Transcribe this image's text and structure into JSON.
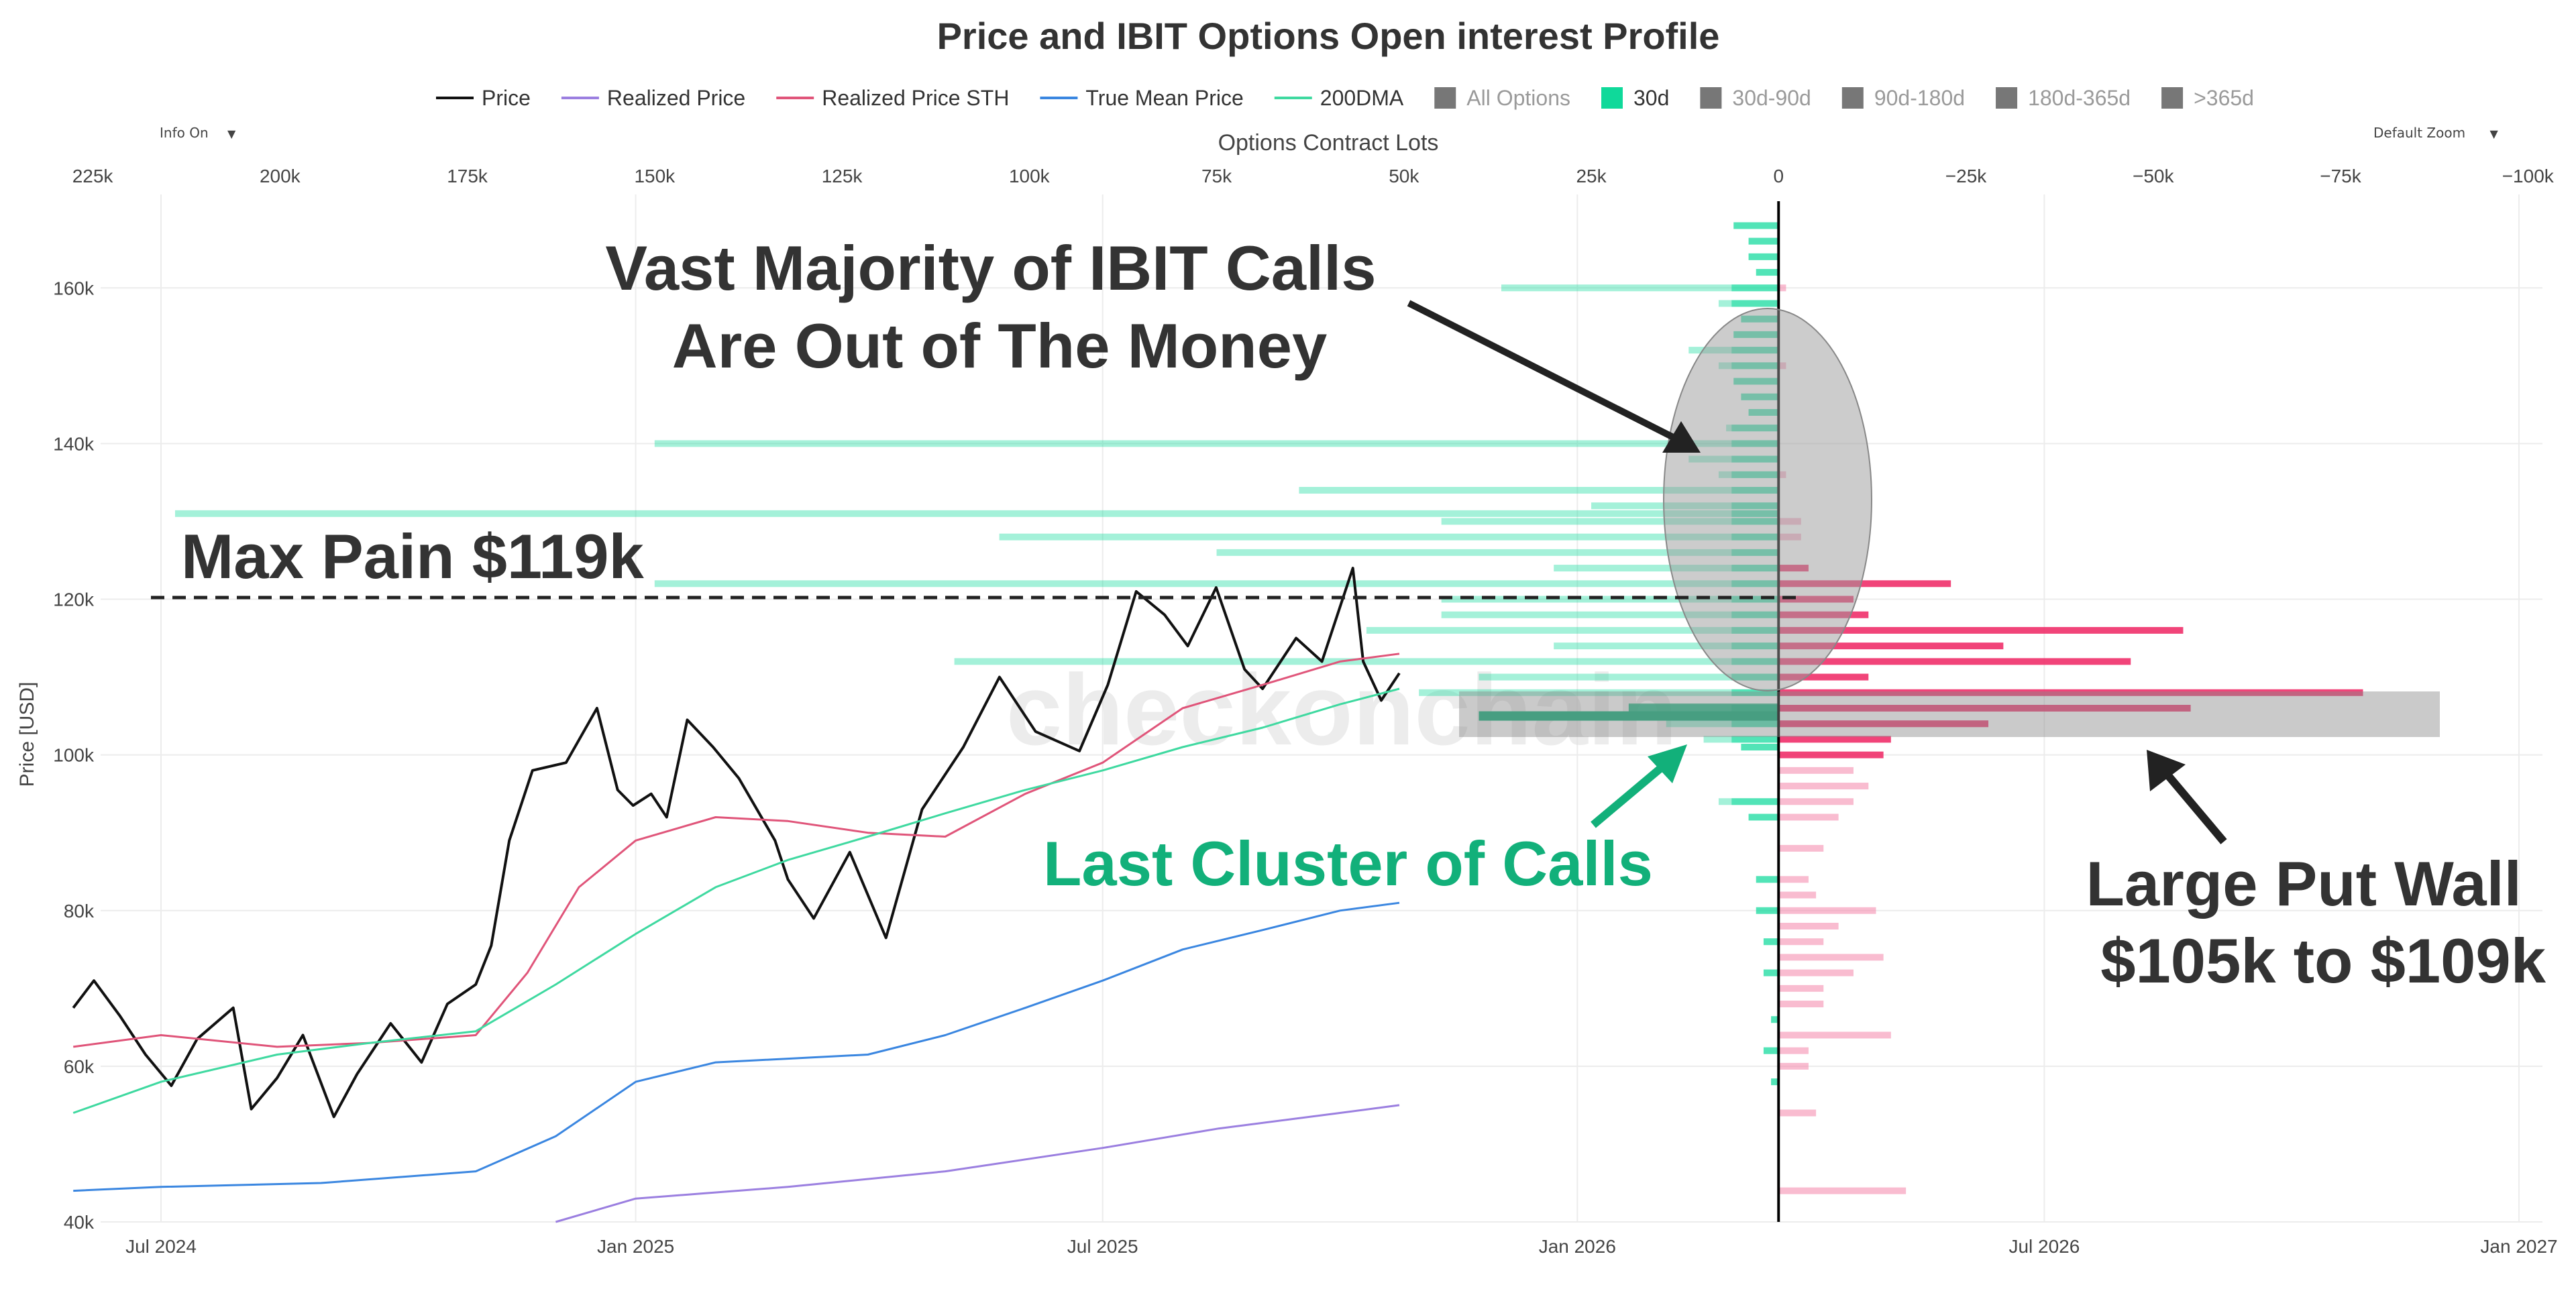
{
  "chart_data": {
    "type": "line",
    "title": "Price and IBIT Options Open interest Profile",
    "watermark": "checkonchain",
    "ylabel": "Price [USD]",
    "top_axis_label": "Options Contract Lots",
    "ylim": [
      40000,
      172000
    ],
    "y_ticks": [
      40000,
      60000,
      80000,
      100000,
      120000,
      140000,
      160000
    ],
    "y_tick_labels": [
      "40k",
      "60k",
      "80k",
      "100k",
      "120k",
      "140k",
      "160k"
    ],
    "x_ticks": [
      "2024-07-01",
      "2025-01-01",
      "2025-07-01",
      "2026-01-01",
      "2026-07-01",
      "2027-01-01"
    ],
    "x_tick_labels": [
      "Jul 2024",
      "Jan 2025",
      "Jul 2025",
      "Jan 2026",
      "Jul 2026",
      "Jan 2027"
    ],
    "top_ticks": [
      225000,
      200000,
      175000,
      150000,
      125000,
      100000,
      75000,
      50000,
      25000,
      0,
      -25000,
      -50000,
      -75000,
      -100000
    ],
    "top_tick_labels": [
      "225k",
      "200k",
      "175k",
      "150k",
      "125k",
      "100k",
      "75k",
      "50k",
      "25k",
      "0",
      "−25k",
      "−50k",
      "−75k",
      "−100k"
    ],
    "zero_line_date": "2026-03-20",
    "legend": [
      {
        "name": "Price",
        "color": "#111111",
        "type": "line",
        "active": true
      },
      {
        "name": "Realized Price",
        "color": "#9b7fe0",
        "type": "line",
        "active": true
      },
      {
        "name": "Realized Price STH",
        "color": "#e0557a",
        "type": "line",
        "active": true
      },
      {
        "name": "True Mean Price",
        "color": "#3a86e0",
        "type": "line",
        "active": true
      },
      {
        "name": "200DMA",
        "color": "#3fd9a0",
        "type": "line",
        "active": true
      },
      {
        "name": "All Options",
        "color": "#777777",
        "type": "box",
        "active": false
      },
      {
        "name": "30d",
        "color": "#0fd99a",
        "type": "box",
        "active": true
      },
      {
        "name": "30d-90d",
        "color": "#777777",
        "type": "box",
        "active": false
      },
      {
        "name": "90d-180d",
        "color": "#777777",
        "type": "box",
        "active": false
      },
      {
        "name": "180d-365d",
        "color": "#777777",
        "type": "box",
        "active": false
      },
      {
        "name": ">365d",
        "color": "#777777",
        "type": "box",
        "active": false
      }
    ],
    "series": [
      {
        "name": "Price",
        "color": "#111111",
        "points": [
          [
            "2024-05-28",
            67500
          ],
          [
            "2024-06-05",
            71000
          ],
          [
            "2024-06-15",
            66500
          ],
          [
            "2024-06-25",
            61500
          ],
          [
            "2024-07-05",
            57500
          ],
          [
            "2024-07-15",
            63500
          ],
          [
            "2024-07-29",
            67500
          ],
          [
            "2024-08-05",
            54500
          ],
          [
            "2024-08-15",
            58500
          ],
          [
            "2024-08-25",
            64000
          ],
          [
            "2024-09-06",
            53500
          ],
          [
            "2024-09-15",
            59000
          ],
          [
            "2024-09-28",
            65500
          ],
          [
            "2024-10-10",
            60500
          ],
          [
            "2024-10-20",
            68000
          ],
          [
            "2024-10-31",
            70500
          ],
          [
            "2024-11-06",
            75500
          ],
          [
            "2024-11-13",
            89000
          ],
          [
            "2024-11-22",
            98000
          ],
          [
            "2024-12-05",
            99000
          ],
          [
            "2024-12-17",
            106000
          ],
          [
            "2024-12-25",
            95500
          ],
          [
            "2024-12-31",
            93500
          ],
          [
            "2025-01-07",
            95000
          ],
          [
            "2025-01-13",
            92000
          ],
          [
            "2025-01-21",
            104500
          ],
          [
            "2025-01-31",
            101000
          ],
          [
            "2025-02-10",
            97000
          ],
          [
            "2025-02-24",
            89000
          ],
          [
            "2025-03-01",
            84000
          ],
          [
            "2025-03-11",
            79000
          ],
          [
            "2025-03-25",
            87500
          ],
          [
            "2025-04-08",
            76500
          ],
          [
            "2025-04-22",
            93000
          ],
          [
            "2025-05-08",
            101000
          ],
          [
            "2025-05-22",
            110000
          ],
          [
            "2025-06-05",
            103000
          ],
          [
            "2025-06-22",
            100500
          ],
          [
            "2025-07-03",
            109000
          ],
          [
            "2025-07-14",
            121000
          ],
          [
            "2025-07-25",
            118000
          ],
          [
            "2025-08-03",
            114000
          ],
          [
            "2025-08-14",
            121500
          ],
          [
            "2025-08-25",
            111000
          ],
          [
            "2025-09-01",
            108500
          ],
          [
            "2025-09-14",
            115000
          ],
          [
            "2025-09-24",
            112000
          ],
          [
            "2025-10-06",
            124000
          ],
          [
            "2025-10-10",
            112000
          ],
          [
            "2025-10-17",
            107000
          ],
          [
            "2025-10-24",
            110500
          ]
        ]
      },
      {
        "name": "Realized Price STH",
        "color": "#e0557a",
        "points": [
          [
            "2024-05-28",
            62500
          ],
          [
            "2024-07-01",
            64000
          ],
          [
            "2024-08-15",
            62500
          ],
          [
            "2024-09-20",
            63000
          ],
          [
            "2024-10-31",
            64000
          ],
          [
            "2024-11-20",
            72000
          ],
          [
            "2024-12-10",
            83000
          ],
          [
            "2025-01-01",
            89000
          ],
          [
            "2025-02-01",
            92000
          ],
          [
            "2025-03-01",
            91500
          ],
          [
            "2025-04-01",
            90000
          ],
          [
            "2025-05-01",
            89500
          ],
          [
            "2025-06-01",
            95000
          ],
          [
            "2025-07-01",
            99000
          ],
          [
            "2025-08-01",
            106000
          ],
          [
            "2025-09-01",
            109000
          ],
          [
            "2025-10-01",
            112000
          ],
          [
            "2025-10-24",
            113000
          ]
        ]
      },
      {
        "name": "200DMA",
        "color": "#3fd9a0",
        "points": [
          [
            "2024-05-28",
            54000
          ],
          [
            "2024-07-01",
            58000
          ],
          [
            "2024-08-15",
            61500
          ],
          [
            "2024-09-20",
            63000
          ],
          [
            "2024-10-31",
            64500
          ],
          [
            "2024-12-01",
            70500
          ],
          [
            "2025-01-01",
            77000
          ],
          [
            "2025-02-01",
            83000
          ],
          [
            "2025-03-01",
            86500
          ],
          [
            "2025-04-01",
            89500
          ],
          [
            "2025-05-01",
            92500
          ],
          [
            "2025-06-01",
            95500
          ],
          [
            "2025-07-01",
            98000
          ],
          [
            "2025-08-01",
            101000
          ],
          [
            "2025-09-01",
            103500
          ],
          [
            "2025-10-01",
            106500
          ],
          [
            "2025-10-24",
            108500
          ]
        ]
      },
      {
        "name": "True Mean Price",
        "color": "#3a86e0",
        "points": [
          [
            "2024-05-28",
            44000
          ],
          [
            "2024-07-01",
            44500
          ],
          [
            "2024-09-01",
            45000
          ],
          [
            "2024-10-31",
            46500
          ],
          [
            "2024-12-01",
            51000
          ],
          [
            "2025-01-01",
            58000
          ],
          [
            "2025-02-01",
            60500
          ],
          [
            "2025-04-01",
            61500
          ],
          [
            "2025-05-01",
            64000
          ],
          [
            "2025-06-01",
            67500
          ],
          [
            "2025-07-01",
            71000
          ],
          [
            "2025-08-01",
            75000
          ],
          [
            "2025-09-01",
            77500
          ],
          [
            "2025-10-01",
            80000
          ],
          [
            "2025-10-24",
            81000
          ]
        ]
      },
      {
        "name": "Realized Price",
        "color": "#9b7fe0",
        "points": [
          [
            "2024-12-01",
            40000
          ],
          [
            "2025-01-01",
            43000
          ],
          [
            "2025-03-01",
            44500
          ],
          [
            "2025-05-01",
            46500
          ],
          [
            "2025-07-01",
            49500
          ],
          [
            "2025-08-15",
            52000
          ],
          [
            "2025-10-01",
            54000
          ],
          [
            "2025-10-24",
            55000
          ]
        ]
      }
    ],
    "options_profile": {
      "unit": "contract lots",
      "calls_30d": [
        {
          "price": 168000,
          "lots": 6000
        },
        {
          "price": 166000,
          "lots": 4000
        },
        {
          "price": 164000,
          "lots": 4000
        },
        {
          "price": 162000,
          "lots": 3000
        },
        {
          "price": 160000,
          "lots": 37000
        },
        {
          "price": 158000,
          "lots": 8000
        },
        {
          "price": 156000,
          "lots": 5000
        },
        {
          "price": 154000,
          "lots": 6000
        },
        {
          "price": 152000,
          "lots": 12000
        },
        {
          "price": 150000,
          "lots": 8000
        },
        {
          "price": 148000,
          "lots": 6000
        },
        {
          "price": 146000,
          "lots": 5000
        },
        {
          "price": 144000,
          "lots": 4000
        },
        {
          "price": 142000,
          "lots": 7000
        },
        {
          "price": 140000,
          "lots": 150000
        },
        {
          "price": 138000,
          "lots": 12000
        },
        {
          "price": 136000,
          "lots": 8000
        },
        {
          "price": 134000,
          "lots": 64000
        },
        {
          "price": 132000,
          "lots": 25000
        },
        {
          "price": 131000,
          "lots": 214000
        },
        {
          "price": 130000,
          "lots": 45000
        },
        {
          "price": 128000,
          "lots": 104000
        },
        {
          "price": 126000,
          "lots": 75000
        },
        {
          "price": 124000,
          "lots": 30000
        },
        {
          "price": 122000,
          "lots": 150000
        },
        {
          "price": 120000,
          "lots": 45000
        },
        {
          "price": 118000,
          "lots": 45000
        },
        {
          "price": 116000,
          "lots": 55000
        },
        {
          "price": 114000,
          "lots": 30000
        },
        {
          "price": 112000,
          "lots": 110000
        },
        {
          "price": 110000,
          "lots": 40000
        },
        {
          "price": 108000,
          "lots": 48000
        },
        {
          "price": 106000,
          "lots": 20000
        },
        {
          "price": 105000,
          "lots": 40000
        },
        {
          "price": 104000,
          "lots": 15000
        },
        {
          "price": 102000,
          "lots": 10000
        },
        {
          "price": 101000,
          "lots": 5000
        },
        {
          "price": 94000,
          "lots": 8000
        },
        {
          "price": 92000,
          "lots": 4000
        },
        {
          "price": 84000,
          "lots": 3000
        },
        {
          "price": 80000,
          "lots": 3000
        },
        {
          "price": 76000,
          "lots": 2000
        },
        {
          "price": 72000,
          "lots": 2000
        },
        {
          "price": 66000,
          "lots": 1000
        },
        {
          "price": 62000,
          "lots": 2000
        },
        {
          "price": 58000,
          "lots": 1000
        }
      ],
      "puts_30d": [
        {
          "price": 160000,
          "lots": 1000
        },
        {
          "price": 150000,
          "lots": 1000
        },
        {
          "price": 136000,
          "lots": 1000
        },
        {
          "price": 130000,
          "lots": 3000
        },
        {
          "price": 128000,
          "lots": 3000
        },
        {
          "price": 124000,
          "lots": 4000
        },
        {
          "price": 122000,
          "lots": 23000
        },
        {
          "price": 120000,
          "lots": 10000
        },
        {
          "price": 118000,
          "lots": 12000
        },
        {
          "price": 116000,
          "lots": 54000
        },
        {
          "price": 114000,
          "lots": 30000
        },
        {
          "price": 112000,
          "lots": 47000
        },
        {
          "price": 110000,
          "lots": 12000
        },
        {
          "price": 108000,
          "lots": 78000
        },
        {
          "price": 106000,
          "lots": 55000
        },
        {
          "price": 104000,
          "lots": 28000
        },
        {
          "price": 102000,
          "lots": 15000
        },
        {
          "price": 100000,
          "lots": 14000
        },
        {
          "price": 98000,
          "lots": 10000
        },
        {
          "price": 96000,
          "lots": 12000
        },
        {
          "price": 94000,
          "lots": 10000
        },
        {
          "price": 92000,
          "lots": 8000
        },
        {
          "price": 88000,
          "lots": 6000
        },
        {
          "price": 84000,
          "lots": 4000
        },
        {
          "price": 82000,
          "lots": 5000
        },
        {
          "price": 80000,
          "lots": 13000
        },
        {
          "price": 78000,
          "lots": 8000
        },
        {
          "price": 76000,
          "lots": 6000
        },
        {
          "price": 74000,
          "lots": 14000
        },
        {
          "price": 72000,
          "lots": 10000
        },
        {
          "price": 70000,
          "lots": 6000
        },
        {
          "price": 68000,
          "lots": 6000
        },
        {
          "price": 64000,
          "lots": 15000
        },
        {
          "price": 62000,
          "lots": 4000
        },
        {
          "price": 60000,
          "lots": 4000
        },
        {
          "price": 54000,
          "lots": 5000
        },
        {
          "price": 44000,
          "lots": 17000
        }
      ]
    },
    "annotations": [
      {
        "text": "Max Pain $119k",
        "price": 122500,
        "color": "#333333"
      },
      {
        "text": "Vast Majority of IBIT Calls Are Out of The Money",
        "color": "#333333"
      },
      {
        "text": "Last Cluster of Calls",
        "color": "#12b07a"
      },
      {
        "text": "Large Put Wall $105k to $109k",
        "color": "#333333"
      }
    ]
  },
  "controls": {
    "info_on": "Info On",
    "default_zoom": "Default Zoom",
    "caret": "▼"
  }
}
